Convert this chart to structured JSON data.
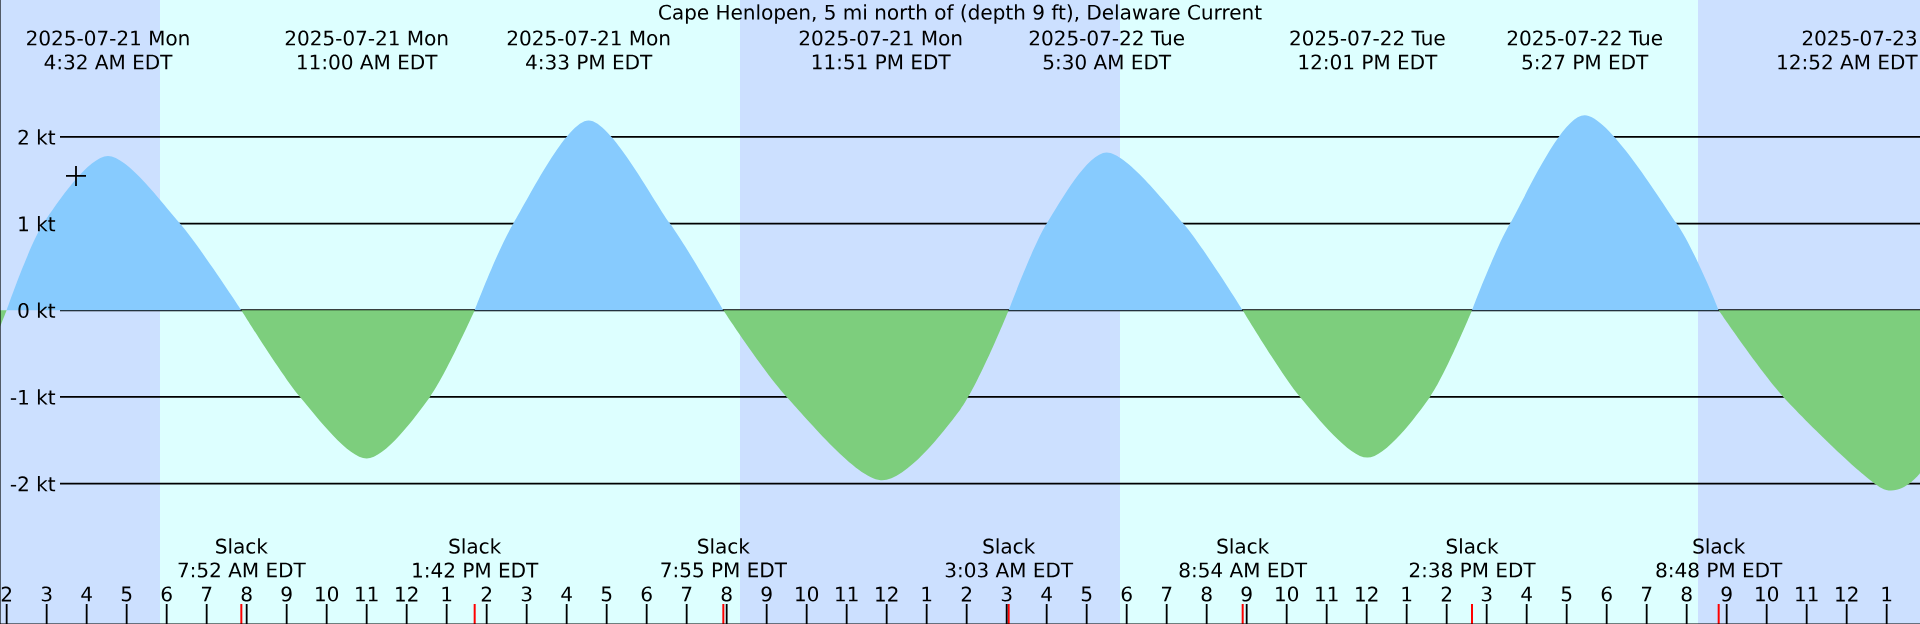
{
  "chart_data": {
    "type": "area",
    "title": "Cape Henlopen, 5 mi north of (depth 9 ft), Delaware Current",
    "x": [
      "2025-07-21T01:50",
      "2025-07-21T02:00",
      "2025-07-21T02:55",
      "2025-07-21T04:32",
      "2025-07-21T06:20",
      "2025-07-21T07:52",
      "2025-07-21T09:20",
      "2025-07-21T11:00",
      "2025-07-21T12:35",
      "2025-07-21T13:42",
      "2025-07-21T14:40",
      "2025-07-21T16:33",
      "2025-07-21T18:35",
      "2025-07-21T19:55",
      "2025-07-21T21:30",
      "2025-07-21T23:51",
      "2025-07-22T01:50",
      "2025-07-22T03:03",
      "2025-07-22T04:00",
      "2025-07-22T05:30",
      "2025-07-22T07:25",
      "2025-07-22T08:54",
      "2025-07-22T10:20",
      "2025-07-22T12:01",
      "2025-07-22T13:35",
      "2025-07-22T14:38",
      "2025-07-22T15:35",
      "2025-07-22T17:27",
      "2025-07-22T19:45",
      "2025-07-22T20:48",
      "2025-07-22T22:25",
      "2025-07-23T00:52",
      "2025-07-23T01:50"
    ],
    "series": [
      {
        "color": "#87cbfe",
        "values": [
          null,
          0,
          1,
          1.78,
          1,
          0,
          null,
          null,
          null,
          0,
          1,
          2.19,
          1,
          0,
          null,
          null,
          null,
          0,
          1,
          1.82,
          1,
          0,
          null,
          null,
          null,
          0,
          1,
          2.25,
          1,
          0,
          null,
          null,
          null
        ]
      },
      {
        "color": "#7dce7d",
        "values": [
          -0.19,
          0,
          null,
          null,
          null,
          0,
          -1,
          -1.71,
          -1,
          0,
          null,
          null,
          null,
          0,
          -1,
          -1.96,
          -1.15,
          0,
          null,
          null,
          null,
          0,
          -1,
          -1.7,
          -1,
          0,
          null,
          null,
          null,
          0,
          -1,
          -2.05,
          -1.88
        ]
      },
      {
        "type": "scatter",
        "color": "#000000",
        "marker": "cross",
        "x": [
          "2025-07-21T03:44"
        ],
        "values": [
          1.55
        ]
      }
    ],
    "xlim": [
      "2025-07-21T01:50",
      "2025-07-23T01:50"
    ],
    "xticks": [
      {
        "value": "2025-07-21T02:00",
        "label": "2"
      },
      {
        "value": "2025-07-21T03:00",
        "label": "3"
      },
      {
        "value": "2025-07-21T04:00",
        "label": "4"
      },
      {
        "value": "2025-07-21T05:00",
        "label": "5"
      },
      {
        "value": "2025-07-21T06:00",
        "label": "6"
      },
      {
        "value": "2025-07-21T07:00",
        "label": "7"
      },
      {
        "value": "2025-07-21T08:00",
        "label": "8"
      },
      {
        "value": "2025-07-21T09:00",
        "label": "9"
      },
      {
        "value": "2025-07-21T10:00",
        "label": "10"
      },
      {
        "value": "2025-07-21T11:00",
        "label": "11"
      },
      {
        "value": "2025-07-21T12:00",
        "label": "12"
      },
      {
        "value": "2025-07-21T13:00",
        "label": "1"
      },
      {
        "value": "2025-07-21T14:00",
        "label": "2"
      },
      {
        "value": "2025-07-21T15:00",
        "label": "3"
      },
      {
        "value": "2025-07-21T16:00",
        "label": "4"
      },
      {
        "value": "2025-07-21T17:00",
        "label": "5"
      },
      {
        "value": "2025-07-21T18:00",
        "label": "6"
      },
      {
        "value": "2025-07-21T19:00",
        "label": "7"
      },
      {
        "value": "2025-07-21T20:00",
        "label": "8"
      },
      {
        "value": "2025-07-21T21:00",
        "label": "9"
      },
      {
        "value": "2025-07-21T22:00",
        "label": "10"
      },
      {
        "value": "2025-07-21T23:00",
        "label": "11"
      },
      {
        "value": "2025-07-22T00:00",
        "label": "12"
      },
      {
        "value": "2025-07-22T01:00",
        "label": "1"
      },
      {
        "value": "2025-07-22T02:00",
        "label": "2"
      },
      {
        "value": "2025-07-22T03:00",
        "label": "3"
      },
      {
        "value": "2025-07-22T04:00",
        "label": "4"
      },
      {
        "value": "2025-07-22T05:00",
        "label": "5"
      },
      {
        "value": "2025-07-22T06:00",
        "label": "6"
      },
      {
        "value": "2025-07-22T07:00",
        "label": "7"
      },
      {
        "value": "2025-07-22T08:00",
        "label": "8"
      },
      {
        "value": "2025-07-22T09:00",
        "label": "9"
      },
      {
        "value": "2025-07-22T10:00",
        "label": "10"
      },
      {
        "value": "2025-07-22T11:00",
        "label": "11"
      },
      {
        "value": "2025-07-22T12:00",
        "label": "12"
      },
      {
        "value": "2025-07-22T13:00",
        "label": "1"
      },
      {
        "value": "2025-07-22T14:00",
        "label": "2"
      },
      {
        "value": "2025-07-22T15:00",
        "label": "3"
      },
      {
        "value": "2025-07-22T16:00",
        "label": "4"
      },
      {
        "value": "2025-07-22T17:00",
        "label": "5"
      },
      {
        "value": "2025-07-22T18:00",
        "label": "6"
      },
      {
        "value": "2025-07-22T19:00",
        "label": "7"
      },
      {
        "value": "2025-07-22T20:00",
        "label": "8"
      },
      {
        "value": "2025-07-22T21:00",
        "label": "9"
      },
      {
        "value": "2025-07-22T22:00",
        "label": "10"
      },
      {
        "value": "2025-07-22T23:00",
        "label": "11"
      },
      {
        "value": "2025-07-23T00:00",
        "label": "12"
      },
      {
        "value": "2025-07-23T01:00",
        "label": "1"
      }
    ],
    "ylim": [
      -3.62,
      3.58
    ],
    "yticks": [
      {
        "value": -2,
        "label": "-2 kt"
      },
      {
        "value": -1,
        "label": "-1 kt"
      },
      {
        "value": 0,
        "label": "0 kt"
      },
      {
        "value": 1,
        "label": "1 kt"
      },
      {
        "value": 2,
        "label": "2 kt"
      }
    ],
    "grid": "y",
    "bands": [
      {
        "axis": "x",
        "from": "2025-07-21T01:50",
        "to": "2025-07-21T05:50",
        "color": "#cce0ff"
      },
      {
        "axis": "x",
        "from": "2025-07-21T20:20",
        "to": "2025-07-22T05:50",
        "color": "#cce0ff"
      },
      {
        "axis": "x",
        "from": "2025-07-22T20:17",
        "to": "2025-07-23T01:50",
        "color": "#cce0ff"
      }
    ],
    "annotations": [
      "2025-07-21 Mon",
      "4:32 AM EDT",
      "Slack",
      "7:52 AM EDT",
      "2025-07-21 Mon",
      "11:00 AM EDT",
      "Slack",
      "1:42 PM EDT",
      "2025-07-21 Mon",
      "4:33 PM EDT",
      "Slack",
      "7:55 PM EDT",
      "2025-07-21 Mon",
      "11:51 PM EDT",
      "Slack",
      "3:03 AM EDT",
      "2025-07-22 Tue",
      "5:30 AM EDT",
      "Slack",
      "8:54 AM EDT",
      "2025-07-22 Tue",
      "12:01 PM EDT",
      "Slack",
      "2:38 PM EDT",
      "2025-07-22 Tue",
      "5:27 PM EDT",
      "Slack",
      "8:48 PM EDT",
      "2025-07-23",
      "12:52 AM EDT"
    ]
  }
}
